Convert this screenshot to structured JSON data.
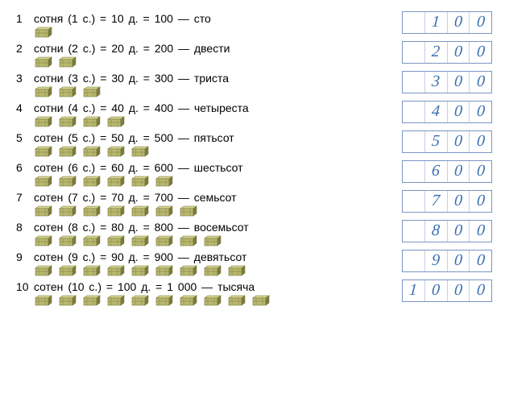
{
  "colors": {
    "text": "#000000",
    "handwriting": "#3b6fb0",
    "box_border": "#7a95c4",
    "box_inner_divider": "#c2d0e8",
    "background": "#ffffff",
    "chest_fill": "#b9b86f",
    "chest_dark": "#7a7a3f",
    "chest_highlight": "#d4d28f"
  },
  "box_cells": 4,
  "rows": [
    {
      "n": "1",
      "label": "сотня",
      "abbr": "(1 с.)",
      "tens": "10",
      "hundreds": "100",
      "word": "сто",
      "chests": 1,
      "written": [
        "",
        "1",
        "0",
        "0"
      ]
    },
    {
      "n": "2",
      "label": "сотни",
      "abbr": "(2 с.)",
      "tens": "20",
      "hundreds": "200",
      "word": "двести",
      "chests": 2,
      "written": [
        "",
        "2",
        "0",
        "0"
      ]
    },
    {
      "n": "3",
      "label": "сотни",
      "abbr": "(3 с.)",
      "tens": "30",
      "hundreds": "300",
      "word": "триста",
      "chests": 3,
      "written": [
        "",
        "3",
        "0",
        "0"
      ]
    },
    {
      "n": "4",
      "label": "сотни",
      "abbr": "(4 с.)",
      "tens": "40",
      "hundreds": "400",
      "word": "четыреста",
      "chests": 4,
      "written": [
        "",
        "4",
        "0",
        "0"
      ]
    },
    {
      "n": "5",
      "label": "сотен",
      "abbr": "(5 с.)",
      "tens": "50",
      "hundreds": "500",
      "word": "пятьсот",
      "chests": 5,
      "written": [
        "",
        "5",
        "0",
        "0"
      ]
    },
    {
      "n": "6",
      "label": "сотен",
      "abbr": "(6 с.)",
      "tens": "60",
      "hundreds": "600",
      "word": "шестьсот",
      "chests": 6,
      "written": [
        "",
        "6",
        "0",
        "0"
      ]
    },
    {
      "n": "7",
      "label": "сотен",
      "abbr": "(7 с.)",
      "tens": "70",
      "hundreds": "700",
      "word": "семьсот",
      "chests": 7,
      "written": [
        "",
        "7",
        "0",
        "0"
      ]
    },
    {
      "n": "8",
      "label": "сотен",
      "abbr": "(8 с.)",
      "tens": "80",
      "hundreds": "800",
      "word": "восемьсот",
      "chests": 8,
      "written": [
        "",
        "8",
        "0",
        "0"
      ]
    },
    {
      "n": "9",
      "label": "сотен",
      "abbr": "(9 с.)",
      "tens": "90",
      "hundreds": "900",
      "word": "девятьсот",
      "chests": 9,
      "written": [
        "",
        "9",
        "0",
        "0"
      ]
    },
    {
      "n": "10",
      "label": "сотен",
      "abbr": "(10 с.)",
      "tens": "100",
      "hundreds": "1 000",
      "word": "тысяча",
      "chests": 10,
      "written": [
        "1",
        "0",
        "0",
        "0"
      ]
    }
  ]
}
